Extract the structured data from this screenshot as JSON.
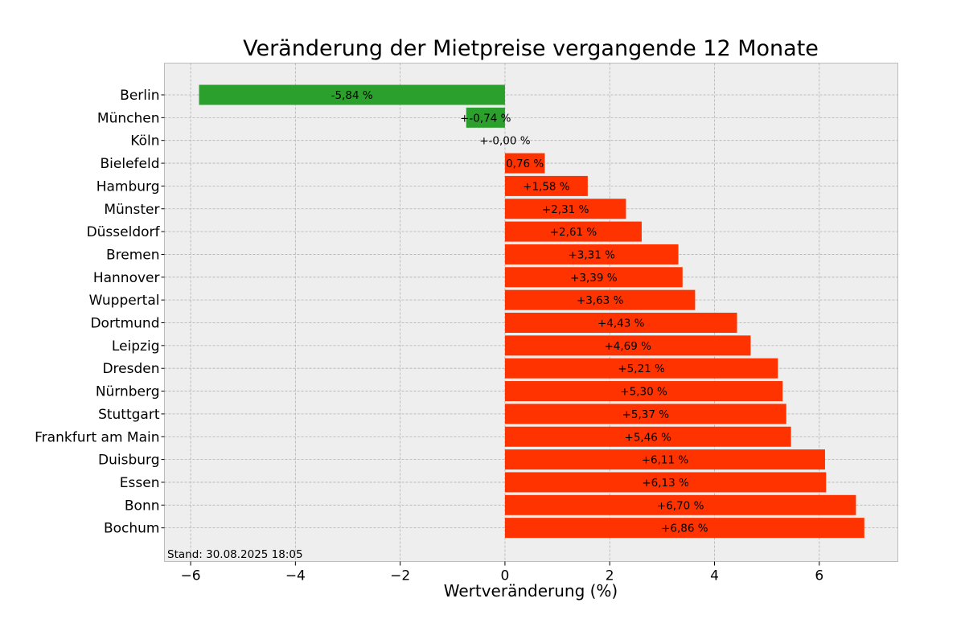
{
  "chart_data": {
    "type": "bar",
    "orientation": "horizontal",
    "title": "Veränderung der Mietpreise vergangende 12 Monate",
    "xlabel": "Wertveränderung (%)",
    "ylabel": "",
    "xlim": [
      -6.5,
      7.5
    ],
    "xticks": [
      -6,
      -4,
      -2,
      0,
      2,
      4,
      6
    ],
    "xtick_labels": [
      "−6",
      "−4",
      "−2",
      "0",
      "2",
      "4",
      "6"
    ],
    "grid": true,
    "categories": [
      "Berlin",
      "München",
      "Köln",
      "Bielefeld",
      "Hamburg",
      "Münster",
      "Düsseldorf",
      "Bremen",
      "Hannover",
      "Wuppertal",
      "Dortmund",
      "Leipzig",
      "Dresden",
      "Nürnberg",
      "Stuttgart",
      "Frankfurt am Main",
      "Duisburg",
      "Essen",
      "Bonn",
      "Bochum"
    ],
    "values": [
      -5.84,
      -0.74,
      0.0,
      0.76,
      1.58,
      2.31,
      2.61,
      3.31,
      3.39,
      3.63,
      4.43,
      4.69,
      5.21,
      5.3,
      5.37,
      5.46,
      6.11,
      6.13,
      6.7,
      6.86
    ],
    "data_labels": [
      "-5,84 %",
      "+-0,74 %",
      "+-0,00 %",
      "0,76 %",
      "+1,58 %",
      "+2,31 %",
      "+2,61 %",
      "+3,31 %",
      "+3,39 %",
      "+3,63 %",
      "+4,43 %",
      "+4,69 %",
      "+5,21 %",
      "+5,30 %",
      "+5,37 %",
      "+5,46 %",
      "+6,11 %",
      "+6,13 %",
      "+6,70 %",
      "+6,86 %"
    ],
    "colors": {
      "negative": "#2ca02c",
      "positive": "#ff3300",
      "plot_background": "#eeeeee",
      "grid": "#b0b0b0"
    },
    "annotation": "Stand: 30.08.2025 18:05"
  }
}
